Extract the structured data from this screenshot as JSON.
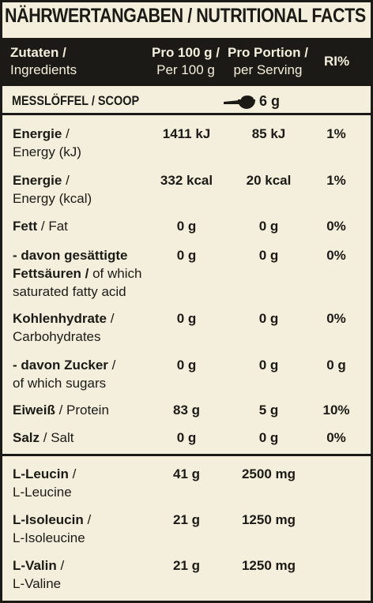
{
  "title": "NÄHRWERTANGABEN / NUTRITIONAL FACTS",
  "header": {
    "col0_line1": "Zutaten /",
    "col0_line2": "Ingredients",
    "col1_line1": "Pro 100 g /",
    "col1_line2": "Per 100 g",
    "col2_line1": "Pro Portion /",
    "col2_line2": "per Serving",
    "col3": "RI%"
  },
  "scoop": {
    "label": "MESSLÖFFEL / SCOOP",
    "icon": "scoop-icon",
    "value": "6 g"
  },
  "rows": [
    {
      "de": "Energie",
      "sep": " /",
      "en": "Energy (kJ)",
      "per100": "1411 kJ",
      "serving": "85 kJ",
      "ri": "1%"
    },
    {
      "de": "Energie",
      "sep": " /",
      "en": "Energy (kcal)",
      "per100": "332 kcal",
      "serving": "20 kcal",
      "ri": "1%"
    },
    {
      "de": "Fett",
      "sep": " /",
      "en": " Fat",
      "per100": "0 g",
      "serving": "0 g",
      "ri": "0%"
    },
    {
      "de1": "- davon gesättigte",
      "de2": "Fettsäuren /",
      "en2": " of which",
      "en3": "saturated fatty acid",
      "per100": "0 g",
      "serving": "0 g",
      "ri": "0%"
    },
    {
      "de": "Kohlenhydrate",
      "sep": " /",
      "en": "Carbohydrates",
      "per100": "0 g",
      "serving": "0 g",
      "ri": "0%"
    },
    {
      "de": "- davon Zucker",
      "sep": " /",
      "en": "of which sugars",
      "per100": "0 g",
      "serving": "0 g",
      "ri": "0 g"
    },
    {
      "de": "Eiweiß",
      "sep": " /",
      "en": " Protein",
      "per100": "83 g",
      "serving": "5 g",
      "ri": "10%"
    },
    {
      "de": "Salz",
      "sep": " /",
      "en": " Salt",
      "per100": "0 g",
      "serving": "0 g",
      "ri": "0%"
    }
  ],
  "amino": [
    {
      "de": "L-Leucin",
      "sep": "  /",
      "en": "L-Leucine",
      "per100": "41 g",
      "serving": "2500 mg"
    },
    {
      "de": "L-Isoleucin",
      "sep": " /",
      "en": "L-Isoleucine",
      "per100": "21 g",
      "serving": "1250 mg"
    },
    {
      "de": "L-Valin",
      "sep": " /",
      "en": "L-Valine",
      "per100": "21 g",
      "serving": "1250 mg"
    }
  ]
}
